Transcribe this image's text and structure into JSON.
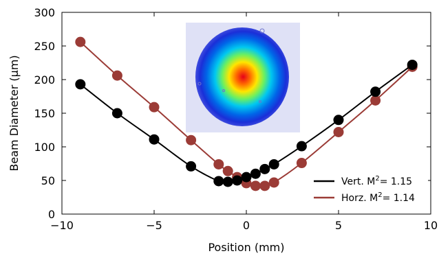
{
  "chart_data": {
    "type": "line",
    "xlabel": "Position (mm)",
    "ylabel": "Beam Diameter (µm)",
    "xlim": [
      -10,
      10
    ],
    "ylim": [
      0,
      300
    ],
    "xticks": [
      -10,
      -5,
      0,
      5,
      10
    ],
    "yticks": [
      0,
      50,
      100,
      150,
      200,
      250,
      300
    ],
    "xtick_labels": [
      "−10",
      "−5",
      "0",
      "5",
      "10"
    ],
    "ytick_labels": [
      "0",
      "50",
      "100",
      "150",
      "200",
      "250",
      "300"
    ],
    "grid": false,
    "legend_position": "bottom-right",
    "inset": "beam intensity profile (rainbow colormap), top-center",
    "series": [
      {
        "name": "Vert.",
        "name_parts": {
          "base": "Vert. M",
          "sup": "2",
          "tail": "= 1.15"
        },
        "color": "#000000",
        "x": [
          -9,
          -7,
          -5,
          -3,
          -1.5,
          -1,
          -0.5,
          0,
          0.5,
          1,
          1.5,
          3,
          5,
          7,
          9
        ],
        "y": [
          193,
          150,
          111,
          71,
          49,
          48,
          50,
          55,
          60,
          67,
          74,
          101,
          140,
          182,
          222
        ]
      },
      {
        "name": "Horz.",
        "name_parts": {
          "base": "Horz. M",
          "sup": "2",
          "tail": "= 1.14"
        },
        "color": "#9b3b36",
        "x": [
          -9,
          -7,
          -5,
          -3,
          -1.5,
          -1,
          -0.5,
          0,
          0.5,
          1,
          1.5,
          3,
          5,
          7,
          9
        ],
        "y": [
          256,
          206,
          159,
          110,
          74,
          64,
          55,
          46,
          42,
          42,
          47,
          76,
          122,
          169,
          219
        ]
      }
    ]
  }
}
